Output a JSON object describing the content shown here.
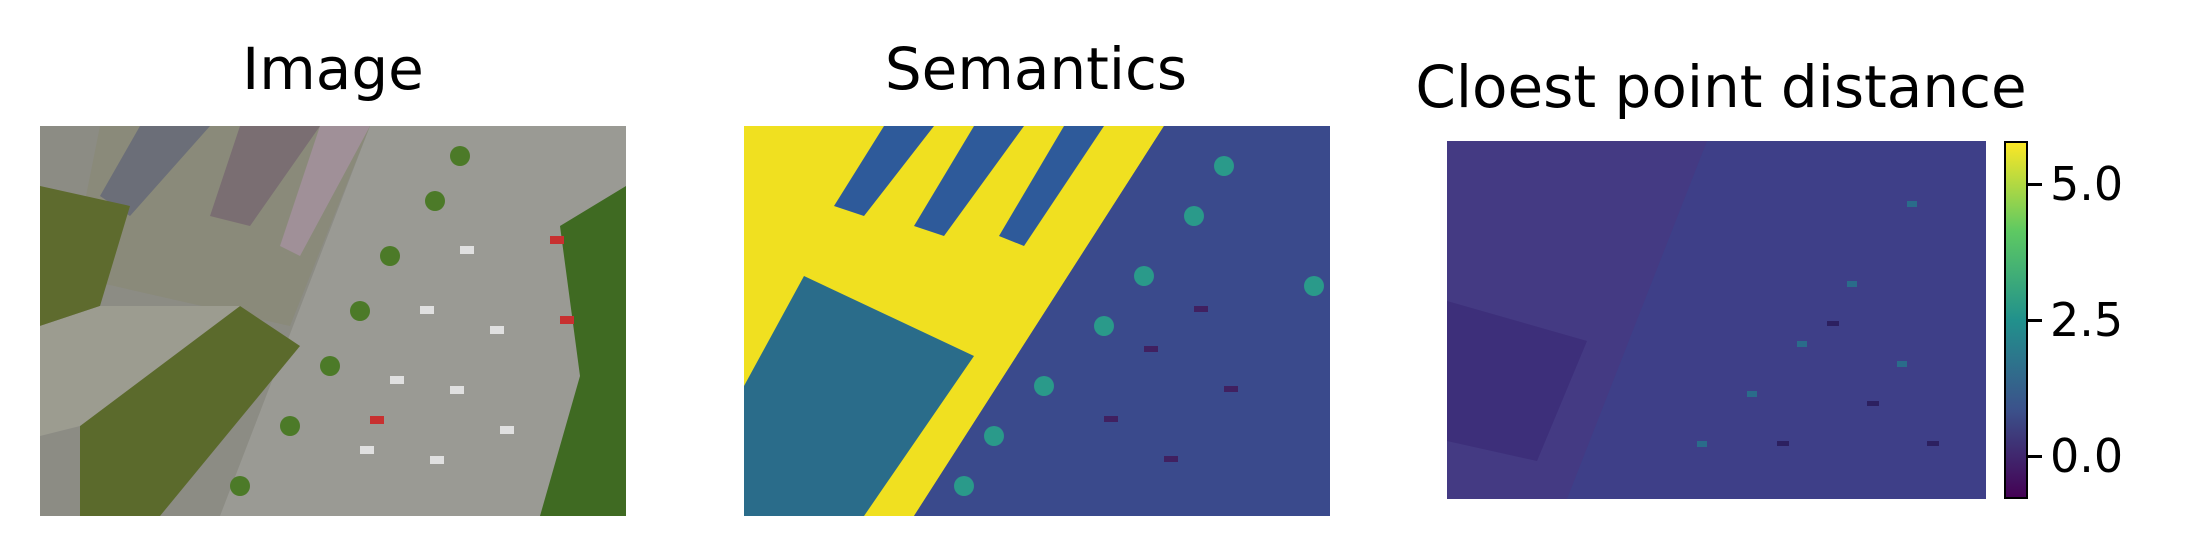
{
  "panels": [
    {
      "title": "Image"
    },
    {
      "title": "Semantics"
    },
    {
      "title": "Cloest point distance"
    }
  ],
  "colorbar": {
    "colormap": "viridis",
    "range": [
      -0.8,
      5.8
    ],
    "ticks": [
      {
        "value": 5.0,
        "label": "5.0"
      },
      {
        "value": 2.5,
        "label": "2.5"
      },
      {
        "value": 0.0,
        "label": "0.0"
      }
    ]
  },
  "colors": {
    "viridis_low": "#440154",
    "viridis_mid": "#21918c",
    "viridis_high": "#fde725",
    "rooftop": "#8a8a7a",
    "grass": "#5e6b2e",
    "trees": "#3d6b20"
  }
}
